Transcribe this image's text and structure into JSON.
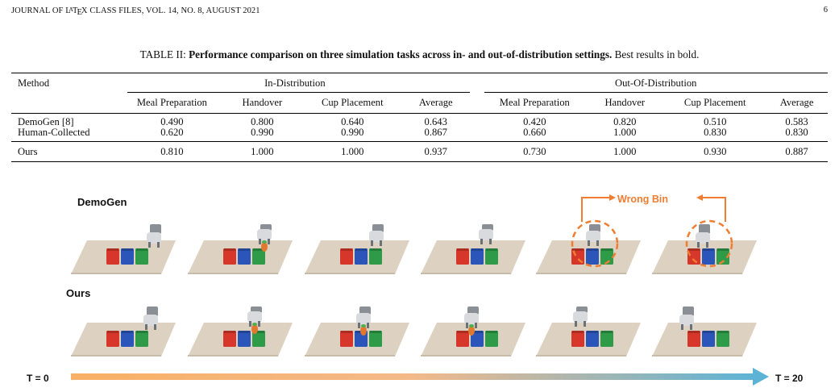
{
  "header": {
    "running_head": "JOURNAL OF LATEX CLASS FILES, VOL. 14, NO. 8, AUGUST 2021",
    "page_number": "6"
  },
  "caption": {
    "label": "TABLE II:",
    "bold_text": "Performance comparison on three simulation tasks across in- and out-of-distribution settings.",
    "rest_text": "Best results in bold."
  },
  "table": {
    "method_header": "Method",
    "groups": [
      "In-Distribution",
      "Out-Of-Distribution"
    ],
    "columns": [
      "Meal Preparation",
      "Handover",
      "Cup Placement",
      "Average",
      "Meal Preparation",
      "Handover",
      "Cup Placement",
      "Average"
    ],
    "rows": [
      {
        "method": "DemoGen [8]",
        "values": [
          "0.490",
          "0.800",
          "0.640",
          "0.643",
          "0.420",
          "0.820",
          "0.510",
          "0.583"
        ]
      },
      {
        "method": "Human-Collected",
        "values": [
          "0.620",
          "0.990",
          "0.990",
          "0.867",
          "0.660",
          "1.000",
          "0.830",
          "0.830"
        ]
      },
      {
        "method": "Ours",
        "values": [
          "0.810",
          "1.000",
          "1.000",
          "0.937",
          "0.730",
          "1.000",
          "0.930",
          "0.887"
        ]
      }
    ]
  },
  "figure": {
    "row_labels": [
      "DemoGen",
      "Ours"
    ],
    "annotation": "Wrong Bin",
    "timeline_start": "T = 0",
    "timeline_end": "T = 20",
    "colors": {
      "annotation": "#ef7d32",
      "timeline_start": "#f8b064",
      "timeline_end": "#5db3d6",
      "bin_red": "#d6372a",
      "bin_blue": "#2b55b8",
      "bin_green": "#2f9a48",
      "tabletop": "#ddd1c1"
    }
  }
}
